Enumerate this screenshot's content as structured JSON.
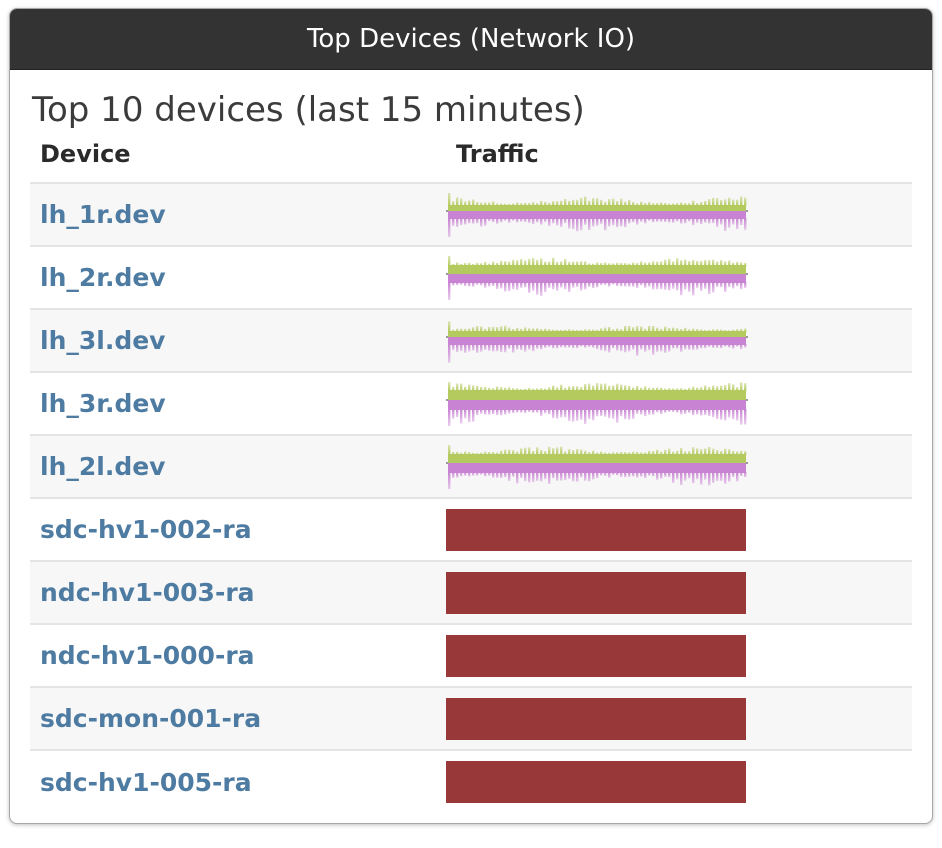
{
  "header": {
    "title": "Top Devices (Network IO)"
  },
  "panel": {
    "title": "Top 10 devices (last 15 minutes)"
  },
  "table": {
    "columns": [
      "Device",
      "Traffic"
    ],
    "rows": [
      {
        "device": "lh_1r.dev",
        "chart": {
          "type": "inout_sparkline",
          "seed": 1,
          "in_base": 6,
          "in_spike": 9,
          "out_base": 8,
          "out_spike": 13
        }
      },
      {
        "device": "lh_2r.dev",
        "chart": {
          "type": "inout_sparkline",
          "seed": 2,
          "in_base": 9,
          "in_spike": 8,
          "out_base": 9,
          "out_spike": 13
        }
      },
      {
        "device": "lh_3l.dev",
        "chart": {
          "type": "inout_sparkline",
          "seed": 3,
          "in_base": 6,
          "in_spike": 6,
          "out_base": 8,
          "out_spike": 11
        }
      },
      {
        "device": "lh_3r.dev",
        "chart": {
          "type": "inout_sparkline",
          "seed": 4,
          "in_base": 10,
          "in_spike": 8,
          "out_base": 10,
          "out_spike": 15
        }
      },
      {
        "device": "lh_2l.dev",
        "chart": {
          "type": "inout_sparkline",
          "seed": 5,
          "in_base": 9,
          "in_spike": 8,
          "out_base": 10,
          "out_spike": 14
        }
      },
      {
        "device": "sdc-hv1-002-ra",
        "chart": {
          "type": "bar",
          "value": 1.0
        }
      },
      {
        "device": "ndc-hv1-003-ra",
        "chart": {
          "type": "bar",
          "value": 1.0
        }
      },
      {
        "device": "ndc-hv1-000-ra",
        "chart": {
          "type": "bar",
          "value": 1.0
        }
      },
      {
        "device": "sdc-mon-001-ra",
        "chart": {
          "type": "bar",
          "value": 1.0
        }
      },
      {
        "device": "sdc-hv1-005-ra",
        "chart": {
          "type": "bar",
          "value": 1.0
        }
      }
    ]
  },
  "colors": {
    "header_bg": "#333333",
    "device_link": "#4e7ba1",
    "sparkline_in": "#b4ca5e",
    "sparkline_out": "#c983d3",
    "sparkline_centerline": "#999999",
    "bar": "#993839",
    "row_alt_bg": "#f7f7f7"
  }
}
